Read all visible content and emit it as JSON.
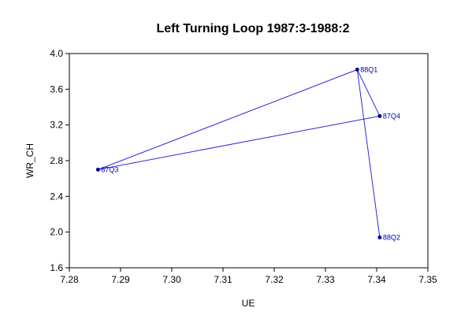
{
  "chart_data": {
    "type": "line",
    "title": "Left Turning Loop 1987:3-1988:2",
    "xlabel": "UE",
    "ylabel": "WR_CH",
    "xlim": [
      7.28,
      7.35
    ],
    "ylim": [
      1.6,
      4.0
    ],
    "xticks": [
      "7.28",
      "7.29",
      "7.30",
      "7.31",
      "7.32",
      "7.33",
      "7.34",
      "7.35"
    ],
    "yticks": [
      "1.6",
      "2.0",
      "2.4",
      "2.8",
      "3.2",
      "3.6",
      "4.0"
    ],
    "grid": false,
    "line_color": "#2b2bd6",
    "point_color": "#0000aa",
    "series": [
      {
        "points": [
          {
            "label": "87Q3",
            "x": 7.2856,
            "y": 2.7
          },
          {
            "label": "87Q4",
            "x": 7.3406,
            "y": 3.3
          },
          {
            "label": "88Q1",
            "x": 7.3362,
            "y": 3.82
          },
          {
            "label": "88Q2",
            "x": 7.3406,
            "y": 1.94
          }
        ]
      }
    ],
    "extra_segments": [
      {
        "from": "87Q3",
        "to": "88Q1"
      }
    ]
  }
}
